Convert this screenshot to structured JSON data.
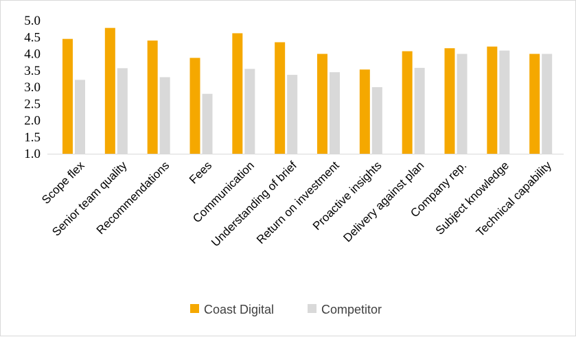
{
  "chart_data": {
    "type": "bar",
    "title": "",
    "xlabel": "",
    "ylabel": "",
    "ylim": [
      1.0,
      5.0
    ],
    "yticks": [
      "1.0",
      "1.5",
      "2.0",
      "2.5",
      "3.0",
      "3.5",
      "4.0",
      "4.5",
      "5.0"
    ],
    "grid": false,
    "legend_position": "bottom",
    "categories": [
      "Scope flex",
      "Senior team quality",
      "Recommendations",
      "Fees",
      "Communication",
      "Understanding of brief",
      "Return on investment",
      "Proactive insights",
      "Delivery against plan",
      "Company rep.",
      "Subject knowledge",
      "Technical capability"
    ],
    "series": [
      {
        "name": "Coast Digital",
        "color": "#f5a800",
        "values": [
          4.45,
          4.78,
          4.4,
          3.88,
          4.62,
          4.35,
          4.0,
          3.53,
          4.08,
          4.17,
          4.22,
          4.0
        ]
      },
      {
        "name": "Competitor",
        "color": "#d9d9d9",
        "values": [
          3.22,
          3.57,
          3.3,
          2.8,
          3.55,
          3.37,
          3.45,
          3.0,
          3.58,
          4.0,
          4.1,
          4.0
        ]
      }
    ]
  }
}
